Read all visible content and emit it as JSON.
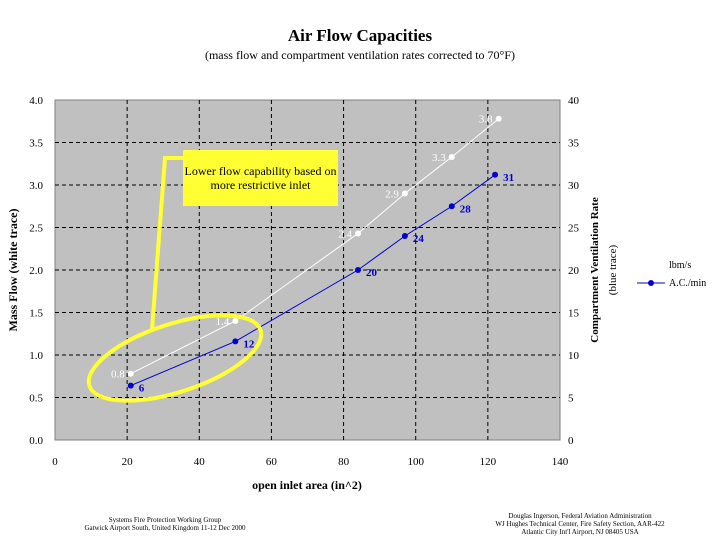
{
  "chart_data": {
    "type": "line",
    "title": "Air Flow Capacities",
    "subtitle": "(mass flow and compartment ventilation rates corrected to 70°F)",
    "xlabel": "open inlet area (in^2)",
    "ylabel_left": "Mass Flow (white trace)",
    "ylabel_right_1": "Compartment Ventilation Rate",
    "ylabel_right_2": "(blue trace)",
    "xlim": [
      0,
      140
    ],
    "ylim_left": [
      0,
      4
    ],
    "ylim_right": [
      0,
      40
    ],
    "x_ticks": [
      "0",
      "20",
      "40",
      "60",
      "80",
      "100",
      "120",
      "140"
    ],
    "y_left_ticks": [
      "0.0",
      "0.5",
      "1.0",
      "1.5",
      "2.0",
      "2.5",
      "3.0",
      "3.5",
      "4.0"
    ],
    "y_right_ticks": [
      "0",
      "5",
      "10",
      "15",
      "20",
      "25",
      "30",
      "35",
      "40"
    ],
    "grid": true,
    "series": [
      {
        "name": "lbm/s",
        "axis": "left",
        "color": "#ffffff",
        "x": [
          21,
          50,
          84,
          97,
          110,
          123
        ],
        "y": [
          0.78,
          1.4,
          2.43,
          2.9,
          3.33,
          3.78
        ],
        "labels": [
          "0.8",
          "1.4",
          "2.4",
          "2.9",
          "3.3",
          "3.8"
        ]
      },
      {
        "name": "A.C./min",
        "axis": "right",
        "color": "#0000cc",
        "x": [
          21,
          50,
          84,
          97,
          110,
          122
        ],
        "y": [
          6.4,
          11.6,
          20,
          24,
          27.5,
          31.2
        ],
        "labels": [
          "6",
          "12",
          "20",
          "24",
          "28",
          "31"
        ]
      }
    ],
    "annotation": "Lower flow capability based on more restrictive inlet"
  },
  "footer": {
    "left_line1": "Systems Fire Protection Working Group",
    "left_line2": "Gatwick Airport South, United Kingdom   11-12 Dec 2000",
    "right_line1": "Douglas Ingerson, Federal Aviation Administration",
    "right_line2": "WJ Hughes Technical Center, Fire Safety Section, AAR-422",
    "right_line3": "Atlantic City Int'l Airport, NJ 08405   USA"
  },
  "colors": {
    "plot_bg": "#c0c0c0",
    "callout": "#ffff33",
    "blue": "#0000cc",
    "ellipse": "#ffff33"
  }
}
